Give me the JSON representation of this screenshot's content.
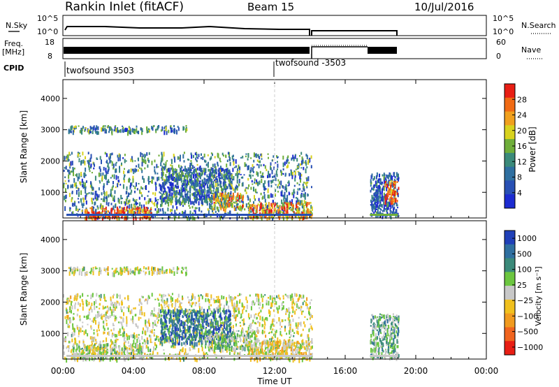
{
  "header": {
    "title": "Rankin Inlet (fitACF)",
    "beam": "Beam 15",
    "date": "10/Jul/2016"
  },
  "noise_panel": {
    "left_label": "N.Sky",
    "left_ticks": [
      "10^5",
      "10^0"
    ],
    "right_label": "N.Search",
    "right_ticks": [
      "10^5",
      "10^0"
    ]
  },
  "freq_panel": {
    "left_label_line1": "Freq.",
    "left_label_line2": "[MHz]",
    "left_ticks": [
      "18",
      "8"
    ],
    "right_label": "Nave",
    "right_ticks": [
      "60",
      "0"
    ]
  },
  "cpid_panel": {
    "label": "CPID",
    "segments": [
      {
        "label": "twofsound 3503",
        "start_hour": 0.0
      },
      {
        "label": "twofsound -3503",
        "start_hour": 12.0
      }
    ]
  },
  "colors": {
    "power": [
      "#1c2bd1",
      "#2850b4",
      "#2f6fa0",
      "#3b8a7a",
      "#6fae3a",
      "#d8d21e",
      "#f0a01e",
      "#f06a14",
      "#e81e14"
    ],
    "velocity": [
      "#e81e14",
      "#f0641e",
      "#f09a1e",
      "#f0c01e",
      "#c8c8c8",
      "#6cc640",
      "#3b8a7a",
      "#2f6fa0",
      "#2040b8"
    ]
  },
  "chart_data": [
    {
      "type": "heatmap",
      "name": "power",
      "xlabel": "",
      "ylabel": "Slant Range [km]",
      "xlim": [
        0,
        24
      ],
      "ylim": [
        180,
        4600
      ],
      "yticks": [
        "1000",
        "2000",
        "3000",
        "4000"
      ],
      "colorbar_label": "Power [dB]",
      "colorbar_ticks": [
        "4",
        "8",
        "12",
        "16",
        "20",
        "24",
        "28"
      ],
      "colorbar_range": [
        0,
        30
      ],
      "regions": [
        {
          "t0": 0.0,
          "t1": 14.1,
          "r0": 200,
          "r1": 2300,
          "level": 10
        },
        {
          "t0": 1.2,
          "t1": 5.0,
          "r0": 200,
          "r1": 550,
          "level": 26
        },
        {
          "t0": 5.5,
          "t1": 9.5,
          "r0": 700,
          "r1": 1800,
          "level": 8
        },
        {
          "t0": 8.5,
          "t1": 10.2,
          "r0": 500,
          "r1": 1000,
          "level": 20
        },
        {
          "t0": 10.5,
          "t1": 14.1,
          "r0": 200,
          "r1": 700,
          "level": 22
        },
        {
          "t0": 0.3,
          "t1": 7.0,
          "r0": 2950,
          "r1": 3150,
          "level": 10
        },
        {
          "t0": 17.4,
          "t1": 19.0,
          "r0": 250,
          "r1": 1650,
          "level": 6
        },
        {
          "t0": 18.2,
          "t1": 19.0,
          "r0": 700,
          "r1": 1400,
          "level": 26
        }
      ]
    },
    {
      "type": "heatmap",
      "name": "velocity",
      "xlabel": "Time UT",
      "ylabel": "Slant Range [km]",
      "xlim": [
        0,
        24
      ],
      "ylim": [
        180,
        4600
      ],
      "x_ticks": [
        "00:00",
        "04:00",
        "08:00",
        "12:00",
        "16:00",
        "20:00",
        "00:00"
      ],
      "yticks": [
        "1000",
        "2000",
        "3000",
        "4000"
      ],
      "colorbar_label": "Velocity [m s⁻¹]",
      "colorbar_ticks": [
        "1000",
        "500",
        "100",
        "25",
        "−25",
        "−100",
        "−500",
        "−1000"
      ],
      "colorbar_range": [
        -1000,
        1000
      ],
      "regions": [
        {
          "t0": 0.0,
          "t1": 14.1,
          "r0": 200,
          "r1": 2300,
          "level": 0
        },
        {
          "t0": 5.5,
          "t1": 9.5,
          "r0": 700,
          "r1": 1800,
          "level": 600
        },
        {
          "t0": 0.4,
          "t1": 4.5,
          "r0": 200,
          "r1": 700,
          "level": 80
        },
        {
          "t0": 8.0,
          "t1": 11.0,
          "r0": 500,
          "r1": 1100,
          "level": 200
        },
        {
          "t0": 10.5,
          "t1": 14.1,
          "r0": 200,
          "r1": 800,
          "level": -120
        },
        {
          "t0": 0.3,
          "t1": 7.0,
          "r0": 2950,
          "r1": 3150,
          "level": 0
        },
        {
          "t0": 17.4,
          "t1": 19.0,
          "r0": 250,
          "r1": 1650,
          "level": 300
        }
      ]
    }
  ]
}
